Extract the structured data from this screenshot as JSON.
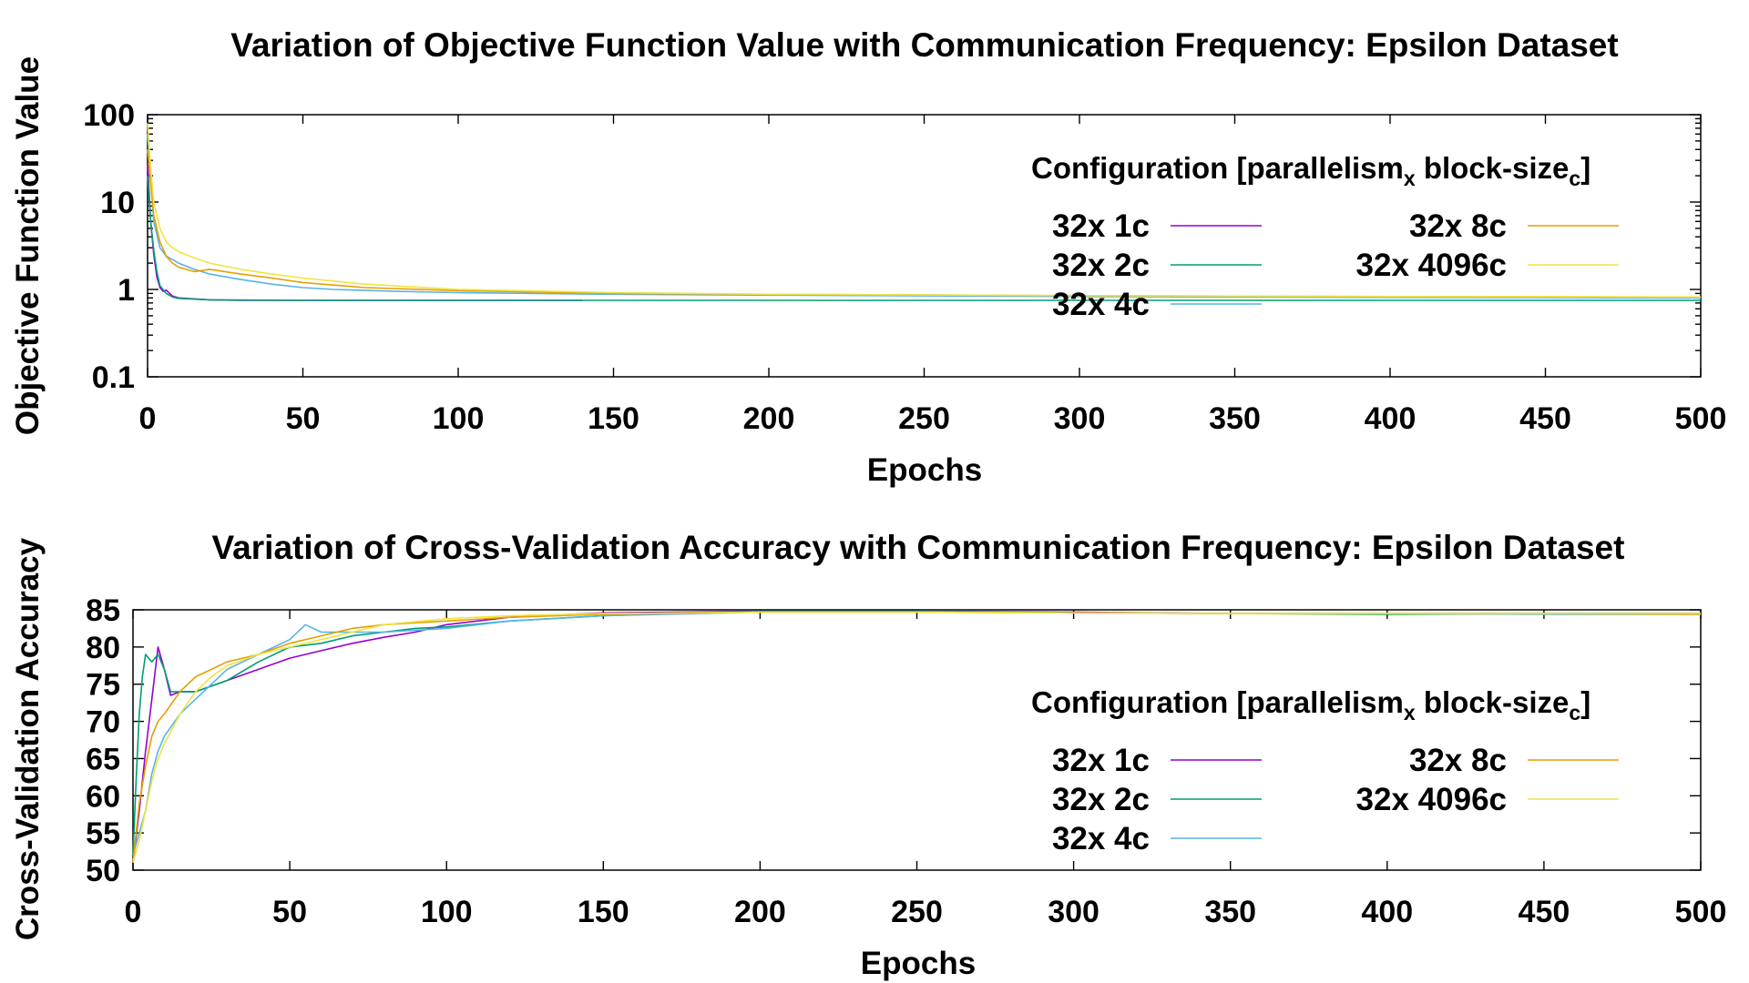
{
  "chart_data": [
    {
      "type": "line",
      "title": "Variation of Objective Function Value with Communication Frequency: Epsilon Dataset",
      "xlabel": "Epochs",
      "ylabel": "Objective Function Value",
      "xlim": [
        0,
        500
      ],
      "ylim": [
        0.1,
        100
      ],
      "yscale": "log",
      "xticks": [
        "0",
        "50",
        "100",
        "150",
        "200",
        "250",
        "300",
        "350",
        "400",
        "450",
        "500"
      ],
      "yticks": [
        "0.1",
        "1",
        "10",
        "100"
      ],
      "grid": false,
      "legend": {
        "placement": "upper-right",
        "title_main": "Configuration [parallelism",
        "title_sub1": "x",
        "title_mid": " block-size",
        "title_sub2": "c",
        "title_end": "]"
      },
      "series": [
        {
          "name": "32x 1c",
          "color": "#9400d3",
          "x": [
            0,
            1,
            2,
            3,
            4,
            5,
            6,
            8,
            10,
            15,
            20,
            30,
            50,
            80,
            100,
            140
          ],
          "y": [
            28,
            6,
            2.5,
            1.4,
            1.05,
            0.95,
            0.98,
            0.84,
            0.8,
            0.78,
            0.76,
            0.75,
            0.75,
            0.75,
            0.75,
            0.75
          ]
        },
        {
          "name": "32x 2c",
          "color": "#009e73",
          "x": [
            0,
            1,
            2,
            3,
            4,
            6,
            8,
            10,
            20,
            50,
            100,
            200,
            300,
            400,
            500
          ],
          "y": [
            20,
            6,
            2.8,
            1.6,
            1.1,
            0.9,
            0.82,
            0.79,
            0.76,
            0.75,
            0.75,
            0.75,
            0.75,
            0.75,
            0.75
          ]
        },
        {
          "name": "32x 4c",
          "color": "#56b4e9",
          "x": [
            0,
            2,
            4,
            6,
            8,
            10,
            15,
            20,
            30,
            40,
            50,
            60,
            80,
            100,
            150,
            200,
            300,
            400,
            500
          ],
          "y": [
            60,
            6,
            3,
            2.4,
            2.2,
            2.0,
            1.7,
            1.5,
            1.3,
            1.15,
            1.05,
            1.0,
            0.95,
            0.92,
            0.88,
            0.86,
            0.83,
            0.81,
            0.8
          ]
        },
        {
          "name": "32x 8c",
          "color": "#e69f00",
          "x": [
            0,
            2,
            4,
            6,
            8,
            10,
            15,
            20,
            30,
            40,
            50,
            70,
            100,
            150,
            200,
            300,
            400,
            500
          ],
          "y": [
            40,
            7,
            3.5,
            2.4,
            2.0,
            1.8,
            1.6,
            1.7,
            1.5,
            1.35,
            1.2,
            1.05,
            0.97,
            0.9,
            0.88,
            0.85,
            0.83,
            0.82
          ]
        },
        {
          "name": "32x 4096c",
          "color": "#f0e442",
          "x": [
            0,
            1,
            2,
            4,
            6,
            8,
            10,
            15,
            20,
            30,
            40,
            50,
            70,
            100,
            150,
            200,
            300,
            400,
            500
          ],
          "y": [
            80,
            25,
            10,
            5,
            3.5,
            3.0,
            2.7,
            2.3,
            2.0,
            1.7,
            1.5,
            1.35,
            1.15,
            1.0,
            0.92,
            0.88,
            0.85,
            0.83,
            0.82
          ]
        }
      ]
    },
    {
      "type": "line",
      "title": "Variation of Cross-Validation Accuracy with Communication Frequency: Epsilon Dataset",
      "xlabel": "Epochs",
      "ylabel": "Cross-Validation Accuracy",
      "xlim": [
        0,
        500
      ],
      "ylim": [
        50,
        85
      ],
      "yscale": "linear",
      "xticks": [
        "0",
        "50",
        "100",
        "150",
        "200",
        "250",
        "300",
        "350",
        "400",
        "450",
        "500"
      ],
      "yticks": [
        "50",
        "55",
        "60",
        "65",
        "70",
        "75",
        "80",
        "85"
      ],
      "grid": false,
      "legend": {
        "placement": "lower-right",
        "title_main": "Configuration [parallelism",
        "title_sub1": "x",
        "title_mid": " block-size",
        "title_sub2": "c",
        "title_end": "]"
      },
      "series": [
        {
          "name": "32x 1c",
          "color": "#9400d3",
          "x": [
            0,
            2,
            4,
            6,
            8,
            10,
            12,
            15,
            20,
            30,
            40,
            50,
            60,
            70,
            80,
            90,
            100,
            120,
            150,
            200,
            250,
            300,
            350,
            400,
            450,
            500
          ],
          "y": [
            51,
            58,
            66,
            73,
            80,
            77,
            73.5,
            74,
            74,
            75.5,
            77,
            78.5,
            79.5,
            80.5,
            81.3,
            82,
            83,
            84,
            84.6,
            84.8,
            84.8,
            84.7,
            84.5,
            84.5,
            84.5,
            84.5
          ]
        },
        {
          "name": "32x 2c",
          "color": "#009e73",
          "x": [
            0,
            1,
            2,
            3,
            4,
            5,
            6,
            8,
            10,
            12,
            15,
            20,
            30,
            40,
            50,
            60,
            70,
            80,
            90,
            100,
            120,
            150,
            200,
            250,
            300,
            350,
            400,
            450,
            500
          ],
          "y": [
            52,
            62,
            71,
            76,
            79,
            78.5,
            78,
            79,
            77,
            74,
            74,
            74,
            75.5,
            78,
            80,
            80.5,
            81.5,
            82,
            82.5,
            82.7,
            83.5,
            84.2,
            84.8,
            84.8,
            84.6,
            84.5,
            84.4,
            84.5,
            84.5
          ]
        },
        {
          "name": "32x 4c",
          "color": "#56b4e9",
          "x": [
            0,
            2,
            4,
            6,
            8,
            10,
            15,
            20,
            25,
            30,
            40,
            50,
            55,
            60,
            70,
            80,
            100,
            120,
            150,
            200,
            250,
            300,
            350,
            400,
            450,
            500
          ],
          "y": [
            52,
            55,
            58,
            63,
            66,
            68,
            71,
            73,
            75,
            77,
            79,
            81,
            83,
            82,
            82,
            82,
            82.5,
            83.5,
            84.2,
            84.7,
            84.7,
            84.6,
            84.5,
            84.5,
            84.4,
            84.4
          ]
        },
        {
          "name": "32x 8c",
          "color": "#e69f00",
          "x": [
            0,
            2,
            4,
            6,
            8,
            10,
            15,
            20,
            25,
            30,
            40,
            50,
            60,
            70,
            80,
            100,
            120,
            150,
            200,
            250,
            300,
            350,
            400,
            450,
            500
          ],
          "y": [
            51,
            59,
            64,
            68,
            70,
            71,
            74,
            76,
            77,
            78,
            79,
            80.5,
            81.5,
            82.5,
            83,
            83.5,
            84,
            84.4,
            84.7,
            84.7,
            84.6,
            84.5,
            84.5,
            84.5,
            84.4
          ]
        },
        {
          "name": "32x 4096c",
          "color": "#f0e442",
          "x": [
            0,
            2,
            4,
            6,
            8,
            10,
            15,
            20,
            25,
            30,
            40,
            50,
            60,
            70,
            80,
            100,
            120,
            150,
            200,
            250,
            300,
            350,
            400,
            450,
            500
          ],
          "y": [
            51,
            54,
            58,
            62,
            65,
            67,
            71,
            74,
            76,
            77.5,
            79,
            80,
            81,
            82,
            83,
            83.8,
            84.2,
            84.5,
            84.7,
            84.7,
            84.6,
            84.5,
            84.5,
            84.5,
            84.5
          ]
        }
      ]
    }
  ]
}
